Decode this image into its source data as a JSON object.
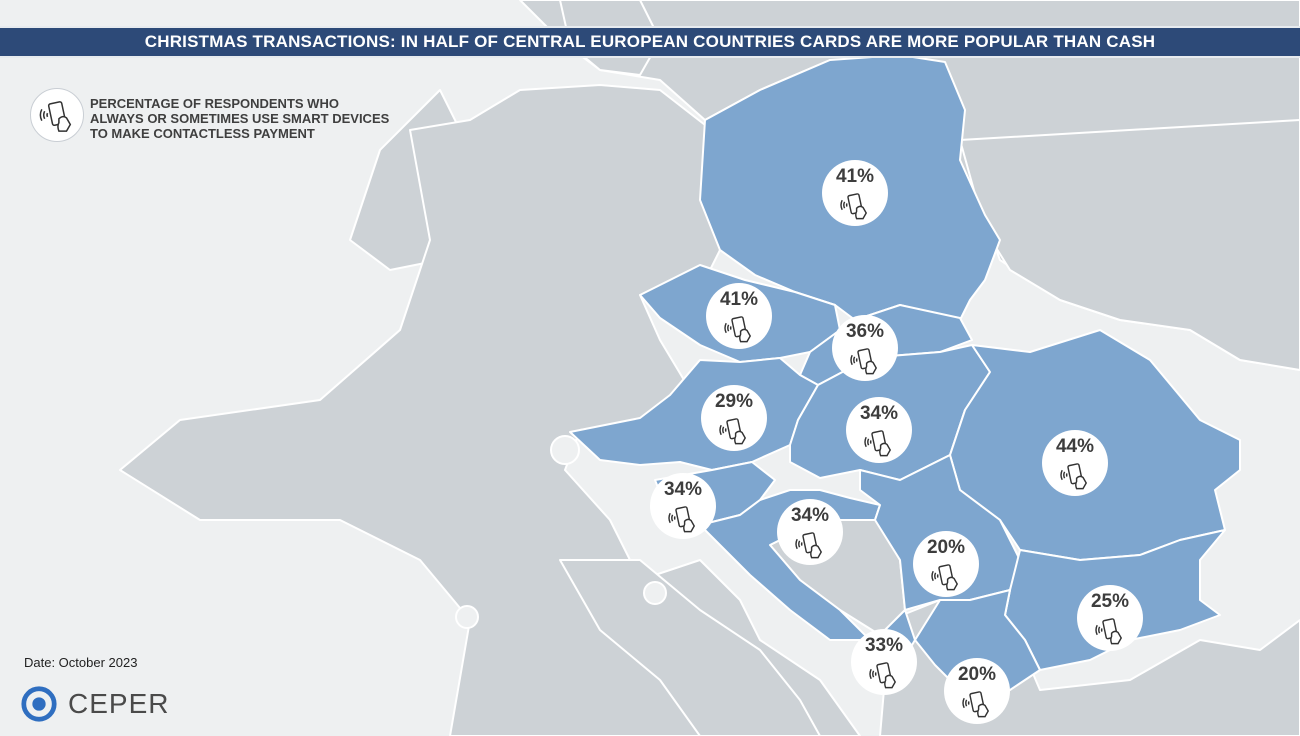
{
  "title": "CHRISTMAS TRANSACTIONS: IN HALF OF CENTRAL EUROPEAN COUNTRIES CARDS ARE MORE POPULAR THAN CASH",
  "legend": {
    "icon": "contactless-phone-icon",
    "text": "PERCENTAGE OF RESPONDENTS WHO ALWAYS OR SOMETIMES USE SMART DEVICES TO MAKE CONTACTLESS PAYMENT"
  },
  "values": {
    "poland": "41%",
    "czechia": "41%",
    "slovakia": "36%",
    "austria": "29%",
    "hungary": "34%",
    "romania": "44%",
    "slovenia": "34%",
    "croatia": "34%",
    "serbia": "20%",
    "bulgaria": "25%",
    "montenegro": "33%",
    "north_macedonia": "20%"
  },
  "footer": {
    "date": "Date: October 2023",
    "logo_text": "CEPER"
  },
  "colors": {
    "highlight": "#7ea6cf",
    "land": "#cdd2d6",
    "sea": "#eef0f1",
    "title_bar": "#2d4a78"
  }
}
